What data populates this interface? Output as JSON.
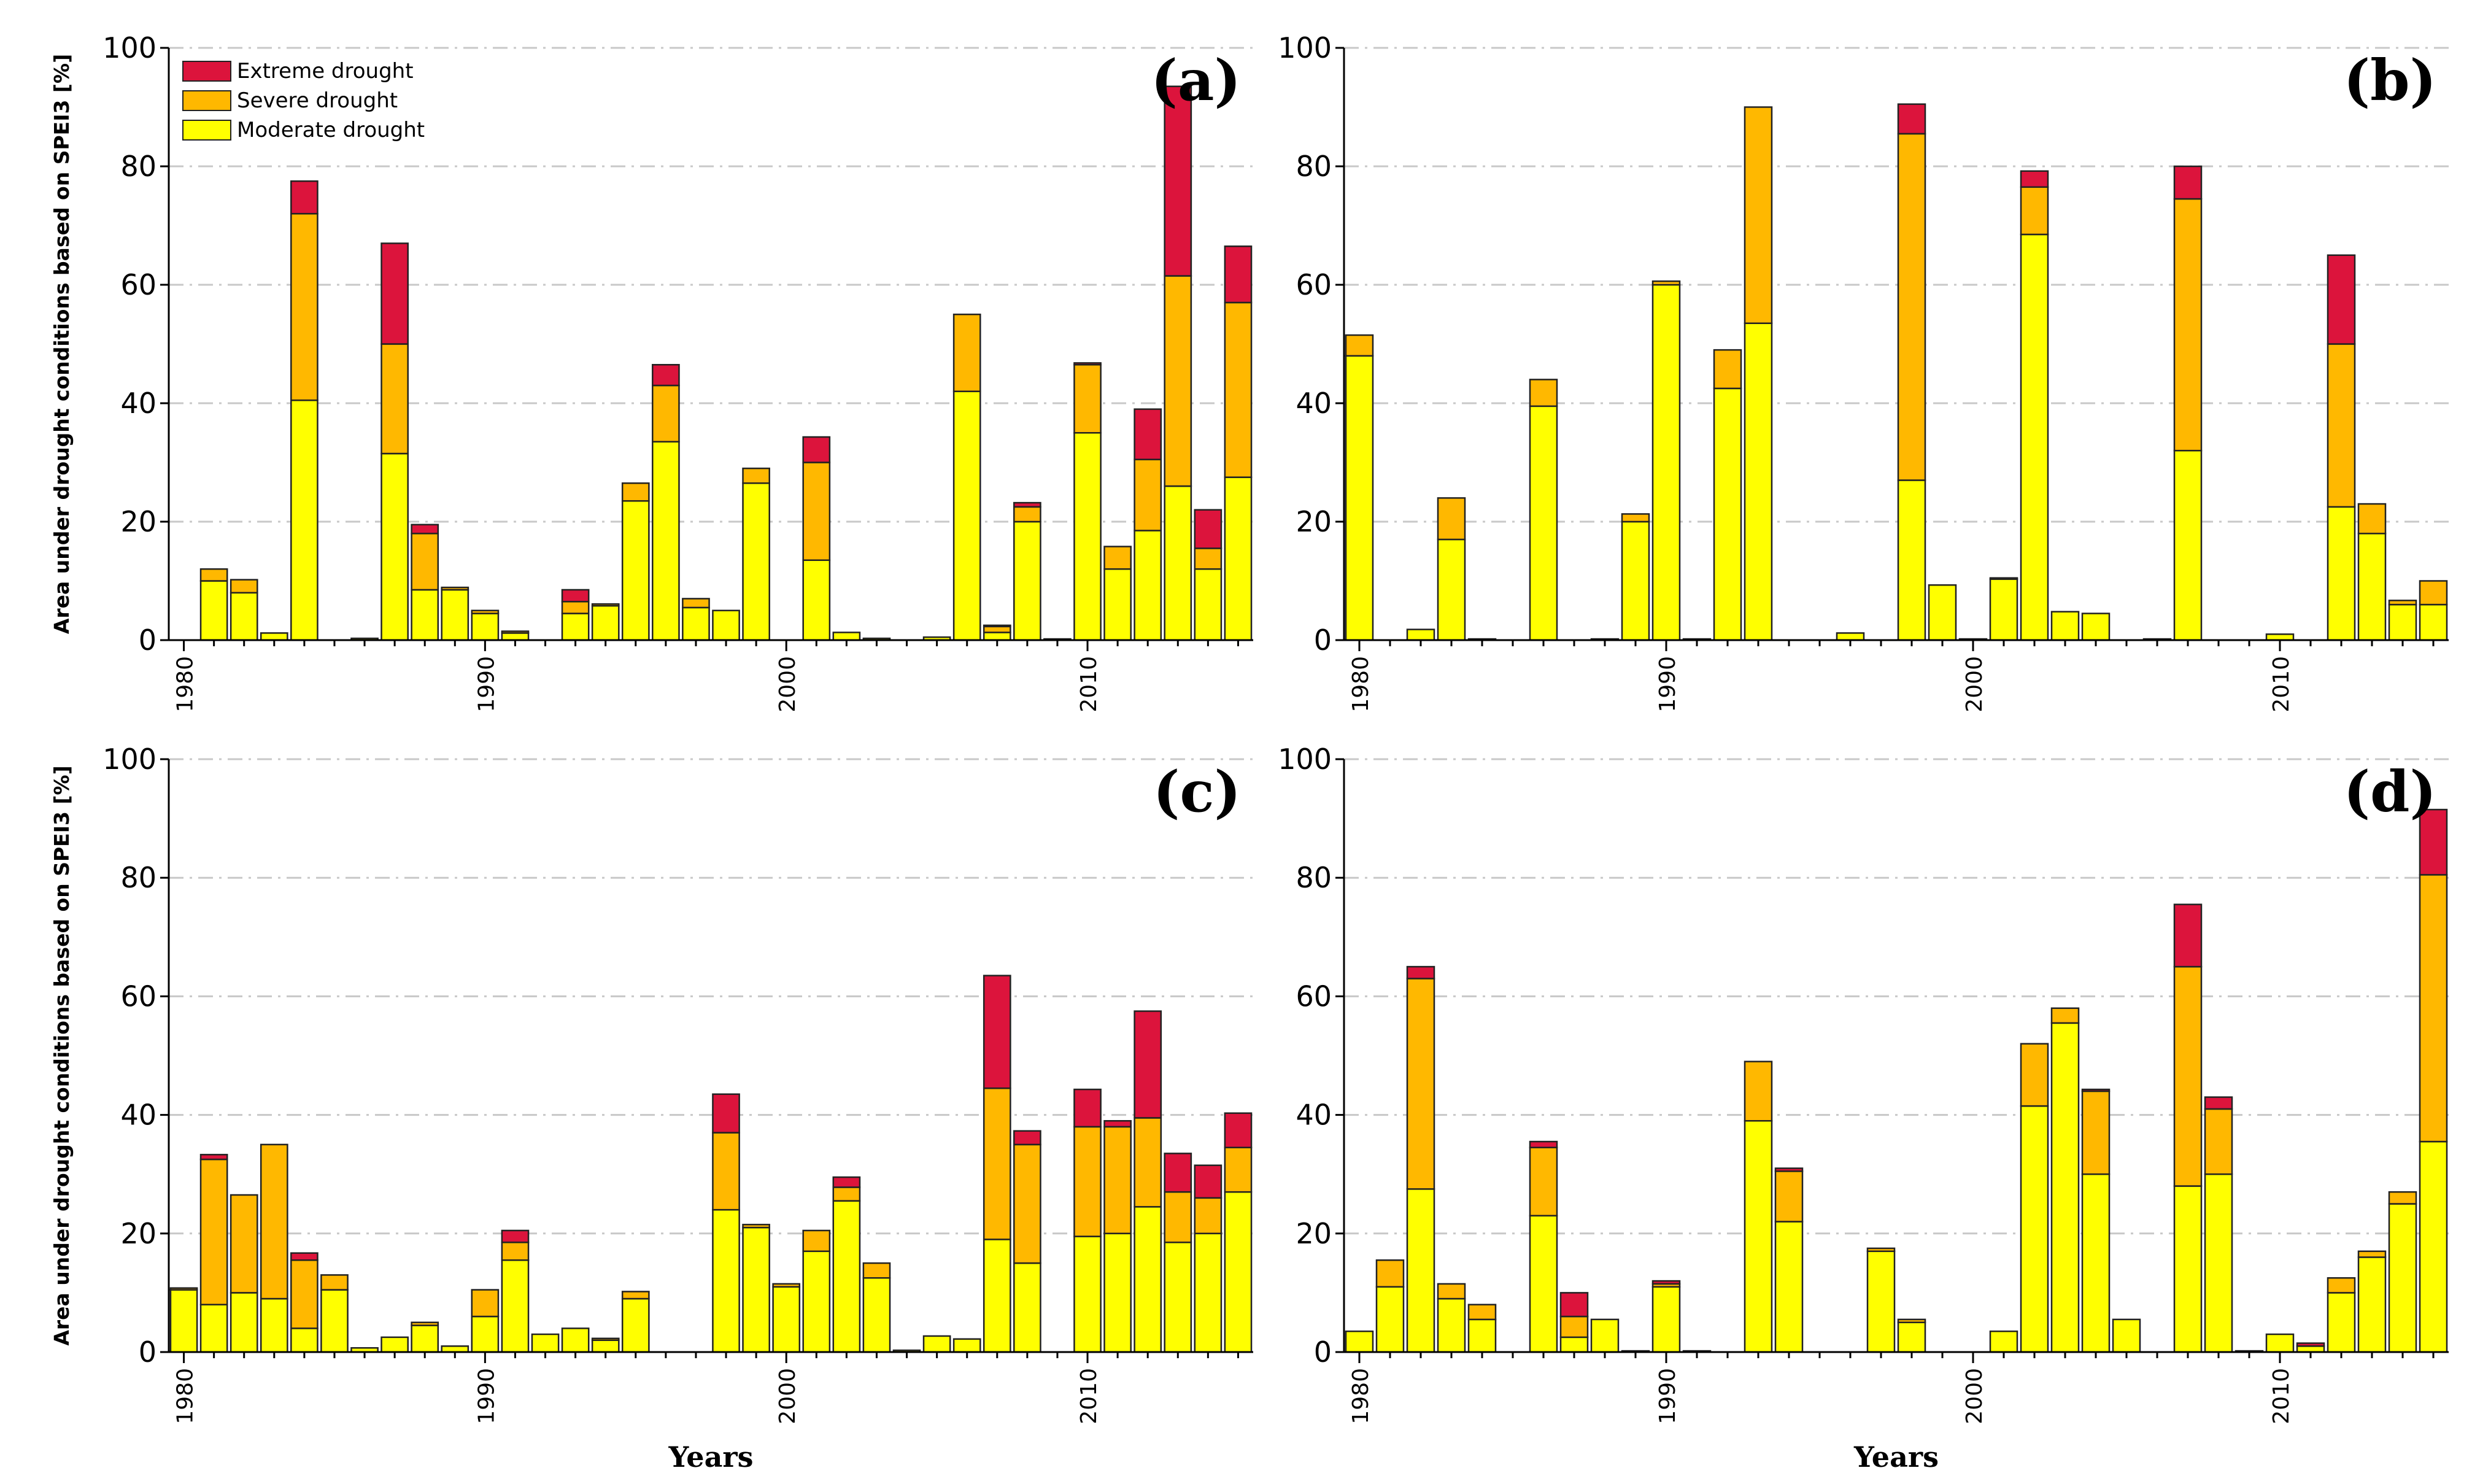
{
  "figure": {
    "ylabel": "Area under drought conditions based on SPEI3 [%]",
    "xlabel": "Years",
    "legend": [
      {
        "name": "Extreme drought",
        "color": "#dc143c"
      },
      {
        "name": "Severe drought",
        "color": "#ffb800"
      },
      {
        "name": "Moderate drought",
        "color": "#ffff00"
      }
    ]
  },
  "chart_data": [
    {
      "type": "bar",
      "stacked": true,
      "panel_label": "(a)",
      "x_start": 1980,
      "x_end": 2015,
      "xticks": [
        "1980",
        "1990",
        "2000",
        "2010"
      ],
      "yticks": [
        "0",
        "20",
        "40",
        "60",
        "80",
        "100"
      ],
      "ylim": [
        0,
        100
      ],
      "grid": "horizontal dashed",
      "legend_position": "top-left",
      "years": [
        1981,
        1982,
        1983,
        1984,
        1986,
        1987,
        1988,
        1989,
        1990,
        1991,
        1993,
        1994,
        1995,
        1996,
        1997,
        1998,
        1999,
        2001,
        2002,
        2003,
        2005,
        2006,
        2007,
        2008,
        2009,
        2010,
        2011,
        2012,
        2013,
        2014,
        2015
      ],
      "series": [
        {
          "name": "Moderate drought",
          "values": [
            10,
            8,
            1.2,
            40.5,
            0.3,
            31.5,
            8.5,
            8.5,
            4.5,
            1.2,
            4.5,
            5.8,
            23.5,
            33.5,
            5.5,
            5,
            26.5,
            13.5,
            1.3,
            0.3,
            0.5,
            42,
            1.3,
            20,
            0.2,
            35,
            12,
            18.5,
            26,
            12,
            27.5
          ]
        },
        {
          "name": "Severe drought",
          "values": [
            2,
            2.2,
            0,
            31.5,
            0,
            18.5,
            9.5,
            0.4,
            0.5,
            0.3,
            2,
            0.3,
            3,
            9.5,
            1.5,
            0,
            2.5,
            16.5,
            0,
            0,
            0,
            13,
            1,
            2.5,
            0,
            11.5,
            3.8,
            12,
            35.5,
            3.5,
            29.5
          ]
        },
        {
          "name": "Extreme drought",
          "values": [
            0,
            0,
            0,
            5.5,
            0,
            17,
            1.5,
            0,
            0,
            0,
            2,
            0,
            0,
            3.5,
            0,
            0,
            0,
            4.3,
            0,
            0,
            0,
            0,
            0.2,
            0.7,
            0,
            0.3,
            0,
            8.5,
            32,
            6.5,
            9.5
          ]
        }
      ]
    },
    {
      "type": "bar",
      "stacked": true,
      "panel_label": "(b)",
      "x_start": 1980,
      "x_end": 2015,
      "xticks": [
        "1980",
        "1990",
        "2000",
        "2010"
      ],
      "yticks": [
        "0",
        "20",
        "40",
        "60",
        "80",
        "100"
      ],
      "ylim": [
        0,
        100
      ],
      "grid": "horizontal dashed",
      "years": [
        1980,
        1982,
        1983,
        1984,
        1986,
        1988,
        1989,
        1990,
        1991,
        1992,
        1993,
        1996,
        1998,
        1999,
        2000,
        2001,
        2002,
        2003,
        2004,
        2006,
        2007,
        2010,
        2012,
        2013,
        2014,
        2015
      ],
      "series": [
        {
          "name": "Moderate drought",
          "values": [
            48,
            1.8,
            17,
            0.2,
            39.5,
            0.2,
            20,
            60,
            0.2,
            42.5,
            53.5,
            1.2,
            27,
            9.3,
            0.2,
            10.3,
            68.5,
            4.8,
            4.5,
            0.2,
            32,
            1,
            22.5,
            18,
            6,
            6
          ]
        },
        {
          "name": "Severe drought",
          "values": [
            3.5,
            0,
            7,
            0,
            4.5,
            0,
            1.3,
            0.6,
            0,
            6.5,
            36.5,
            0,
            58.5,
            0,
            0,
            0.2,
            8,
            0,
            0,
            0,
            42.5,
            0,
            27.5,
            5,
            0.7,
            4
          ]
        },
        {
          "name": "Extreme drought",
          "values": [
            0,
            0,
            0,
            0,
            0,
            0,
            0,
            0,
            0,
            0,
            0,
            0,
            5,
            0,
            0,
            0,
            2.7,
            0,
            0,
            0,
            5.5,
            0,
            15,
            0,
            0,
            0
          ]
        }
      ]
    },
    {
      "type": "bar",
      "stacked": true,
      "panel_label": "(c)",
      "x_start": 1980,
      "x_end": 2015,
      "xticks": [
        "1980",
        "1990",
        "2000",
        "2010"
      ],
      "yticks": [
        "0",
        "20",
        "40",
        "60",
        "80",
        "100"
      ],
      "ylim": [
        0,
        100
      ],
      "grid": "horizontal dashed",
      "years": [
        1980,
        1981,
        1982,
        1983,
        1984,
        1985,
        1986,
        1987,
        1988,
        1989,
        1990,
        1991,
        1992,
        1993,
        1994,
        1995,
        1998,
        1999,
        2000,
        2001,
        2002,
        2003,
        2004,
        2005,
        2006,
        2007,
        2008,
        2010,
        2011,
        2012,
        2013,
        2014,
        2015
      ],
      "series": [
        {
          "name": "Moderate drought",
          "values": [
            10.5,
            8,
            10,
            9,
            4,
            10.5,
            0.7,
            2.5,
            4.5,
            1,
            6,
            15.5,
            3,
            4,
            2,
            9,
            24,
            21,
            11,
            17,
            25.5,
            12.5,
            0.3,
            2.7,
            2.2,
            19,
            15,
            19.5,
            20,
            24.5,
            18.5,
            20,
            27
          ]
        },
        {
          "name": "Severe drought",
          "values": [
            0.3,
            24.5,
            16.5,
            26,
            11.5,
            2.5,
            0,
            0,
            0.5,
            0,
            4.5,
            3,
            0,
            0,
            0.3,
            1.2,
            13,
            0.5,
            0.5,
            3.5,
            2.3,
            2.5,
            0,
            0,
            0,
            25.5,
            20,
            18.5,
            18,
            15,
            8.5,
            6,
            7.5
          ]
        },
        {
          "name": "Extreme drought",
          "values": [
            0,
            0.8,
            0,
            0,
            1.2,
            0,
            0,
            0,
            0,
            0,
            0,
            2,
            0,
            0,
            0,
            0,
            6.5,
            0,
            0,
            0,
            1.7,
            0,
            0,
            0,
            0,
            19,
            2.3,
            6.3,
            1,
            18,
            6.5,
            5.5,
            5.8
          ]
        }
      ]
    },
    {
      "type": "bar",
      "stacked": true,
      "panel_label": "(d)",
      "x_start": 1980,
      "x_end": 2015,
      "xticks": [
        "1980",
        "1990",
        "2000",
        "2010"
      ],
      "yticks": [
        "0",
        "20",
        "40",
        "60",
        "80",
        "100"
      ],
      "ylim": [
        0,
        100
      ],
      "grid": "horizontal dashed",
      "years": [
        1980,
        1981,
        1982,
        1983,
        1984,
        1986,
        1987,
        1988,
        1989,
        1990,
        1991,
        1993,
        1994,
        1997,
        1998,
        2001,
        2002,
        2003,
        2004,
        2005,
        2007,
        2008,
        2009,
        2010,
        2011,
        2012,
        2013,
        2014,
        2015
      ],
      "series": [
        {
          "name": "Moderate drought",
          "values": [
            3.5,
            11,
            27.5,
            9,
            5.5,
            23,
            2.5,
            5.5,
            0.2,
            11,
            0.2,
            39,
            22,
            17,
            5,
            3.5,
            41.5,
            55.5,
            30,
            5.5,
            28,
            30,
            0.2,
            3,
            1,
            10,
            16,
            25,
            35.5
          ]
        },
        {
          "name": "Severe drought",
          "values": [
            0,
            4.5,
            35.5,
            2.5,
            2.5,
            11.5,
            3.5,
            0,
            0,
            0.5,
            0,
            10,
            8.5,
            0.5,
            0.5,
            0,
            10.5,
            2.5,
            14,
            0,
            37,
            11,
            0,
            0,
            0,
            2.5,
            1,
            2,
            45
          ]
        },
        {
          "name": "Extreme drought",
          "values": [
            0,
            0,
            2,
            0,
            0,
            1,
            4,
            0,
            0,
            0.5,
            0,
            0,
            0.5,
            0,
            0,
            0,
            0,
            0,
            0.3,
            0,
            10.5,
            2,
            0,
            0,
            0.5,
            0,
            0,
            0,
            11
          ]
        }
      ]
    }
  ]
}
